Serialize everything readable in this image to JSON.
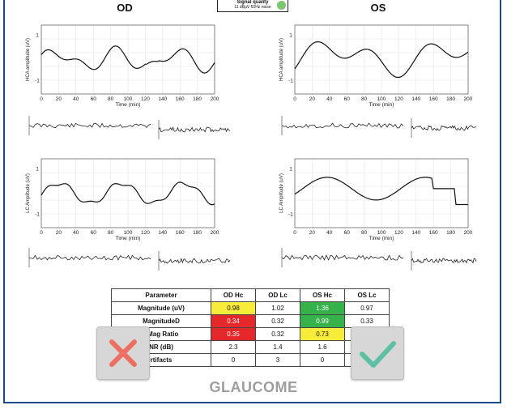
{
  "header": {
    "left_eye": "OD",
    "right_eye": "OS",
    "signal_quality_title": "Signal quality",
    "signal_quality_sub": "11 dBμV 60Hz noise",
    "signal_quality_color": "#7cc86e"
  },
  "plots": {
    "hca_ylabel": "HCA amplitude (uV)",
    "lc_ylabel": "LC Amplitude (uV)",
    "xlabel": "Time (min)",
    "x_ticks": [
      "0",
      "20",
      "40",
      "60",
      "80",
      "100",
      "120",
      "140",
      "160",
      "180",
      "200"
    ],
    "y_ticks": [
      "1",
      "-1"
    ]
  },
  "table": {
    "headers": [
      "Parameter",
      "OD Hc",
      "OD Lc",
      "OS Hc",
      "OS Lc"
    ],
    "rows": [
      {
        "label": "Magnitude (uV)",
        "cells": [
          "0.98",
          "1.02",
          "1.36",
          "0.97"
        ],
        "styles": [
          "yellow",
          "",
          "green",
          ""
        ]
      },
      {
        "label": "MagnitudeD",
        "cells": [
          "0.34",
          "0.32",
          "0.99",
          "0.33"
        ],
        "styles": [
          "red",
          "",
          "green",
          ""
        ]
      },
      {
        "label": "/ Mag Ratio",
        "cells": [
          "0.35",
          "0.32",
          "0.73",
          ""
        ],
        "styles": [
          "red",
          "",
          "yellow",
          ""
        ]
      },
      {
        "label": "NR (dB)",
        "cells": [
          "2.3",
          "1.4",
          "1.6",
          ""
        ],
        "styles": [
          "",
          "",
          "",
          ""
        ]
      },
      {
        "label": "rtifacts",
        "cells": [
          "0",
          "3",
          "0",
          ""
        ],
        "styles": [
          "",
          "",
          "",
          ""
        ]
      }
    ]
  },
  "buttons": {
    "reject_color": "#ee6f62",
    "accept_color": "#5cc0a4"
  },
  "verdict": "GLAUCOME"
}
